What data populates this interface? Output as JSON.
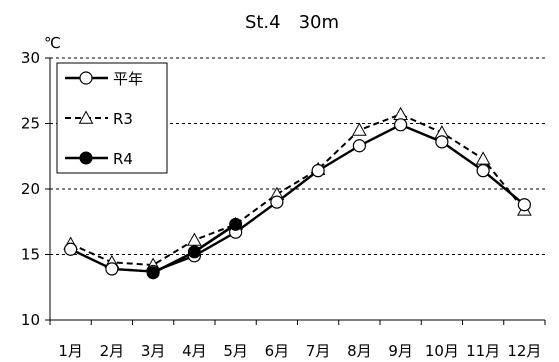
{
  "chart_data": {
    "type": "line",
    "title": "St.4　30m",
    "xlabel": "",
    "ylabel": "℃",
    "categories": [
      "1月",
      "2月",
      "3月",
      "4月",
      "5月",
      "6月",
      "7月",
      "8月",
      "9月",
      "10月",
      "11月",
      "12月"
    ],
    "ylim": [
      10,
      30
    ],
    "yticks": [
      "10",
      "15",
      "20",
      "25",
      "30"
    ],
    "grid": "horizontal-dashed",
    "legend_position": "top-left",
    "series": [
      {
        "name": "平年",
        "values": [
          15.4,
          13.9,
          13.7,
          14.9,
          16.7,
          19.0,
          21.4,
          23.3,
          24.9,
          23.6,
          21.4,
          18.8
        ],
        "line_style": "solid",
        "marker": "open-circle",
        "color": "#000000"
      },
      {
        "name": "R3",
        "values": [
          15.8,
          14.4,
          14.2,
          16.1,
          17.3,
          19.6,
          21.5,
          24.5,
          25.7,
          24.3,
          22.3,
          18.4
        ],
        "line_style": "dashed",
        "marker": "open-triangle",
        "color": "#000000"
      },
      {
        "name": "R4",
        "values": [
          null,
          null,
          13.6,
          15.2,
          17.3,
          null,
          null,
          null,
          null,
          null,
          null,
          null
        ],
        "line_style": "solid",
        "marker": "filled-circle",
        "color": "#000000"
      }
    ]
  }
}
